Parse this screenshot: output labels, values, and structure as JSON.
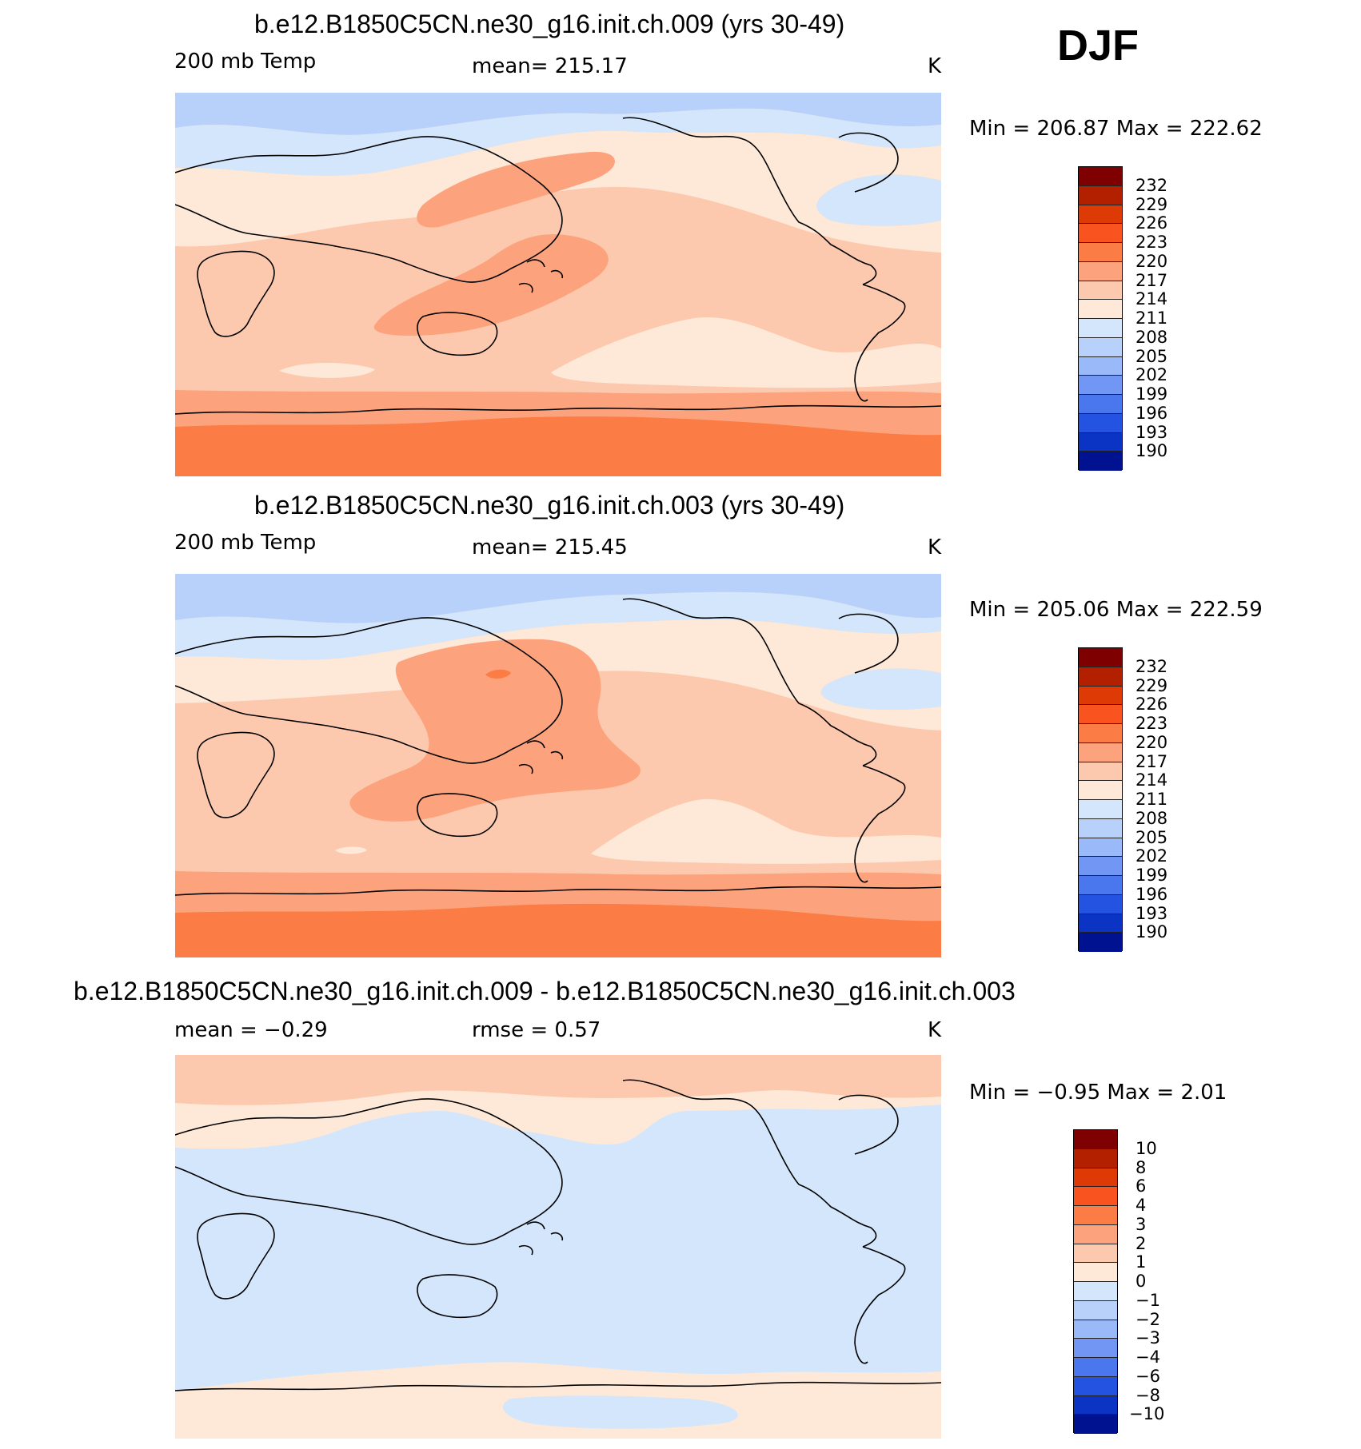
{
  "season": "DJF",
  "panels": [
    {
      "title": "b.e12.B1850C5CN.ne30_g16.init.ch.009 (yrs 30-49)",
      "left_label": "200 mb Temp",
      "center_label": "mean=  215.17",
      "units": "K",
      "minmax": "Min  =  206.87  Max  =  222.62",
      "colorbar_ticks": [
        "232",
        "229",
        "226",
        "223",
        "220",
        "217",
        "214",
        "211",
        "208",
        "205",
        "202",
        "199",
        "196",
        "193",
        "190"
      ]
    },
    {
      "title": "b.e12.B1850C5CN.ne30_g16.init.ch.003 (yrs 30-49)",
      "left_label": "200 mb Temp",
      "center_label": "mean=  215.45",
      "units": "K",
      "minmax": "Min  =  205.06  Max  =  222.59",
      "colorbar_ticks": [
        "232",
        "229",
        "226",
        "223",
        "220",
        "217",
        "214",
        "211",
        "208",
        "205",
        "202",
        "199",
        "196",
        "193",
        "190"
      ]
    },
    {
      "title": "b.e12.B1850C5CN.ne30_g16.init.ch.009 - b.e12.B1850C5CN.ne30_g16.init.ch.003",
      "left_label": "mean  =    −0.29",
      "center_label": "rmse  =     0.57",
      "units": "K",
      "minmax": "Min  =     −0.95  Max  =     2.01",
      "colorbar_ticks": [
        "10",
        "8",
        "6",
        "4",
        "3",
        "2",
        "1",
        "0",
        "−1",
        "−2",
        "−3",
        "−4",
        "−6",
        "−8",
        "−10"
      ]
    }
  ],
  "colors": {
    "scale": [
      "#7f0000",
      "#b32000",
      "#dd3a05",
      "#f9531f",
      "#fb7d45",
      "#fca37e",
      "#fdc9ae",
      "#fee9d8",
      "#d3e6fb",
      "#b7d1fb",
      "#9ab9f8",
      "#7196f3",
      "#4b77ee",
      "#2553e1",
      "#0b33c4",
      "#00128f"
    ],
    "t_light": "#fee9d8",
    "t_mid": "#fdc9ae",
    "t_warm": "#fca37e",
    "t_warmer": "#fb7d45",
    "t_cool": "#d3e6fb",
    "t_cold": "#b7d1fb",
    "d_pos": "#fdc9ae",
    "d_light": "#fee9d8",
    "d_neg": "#d3e6fb"
  }
}
